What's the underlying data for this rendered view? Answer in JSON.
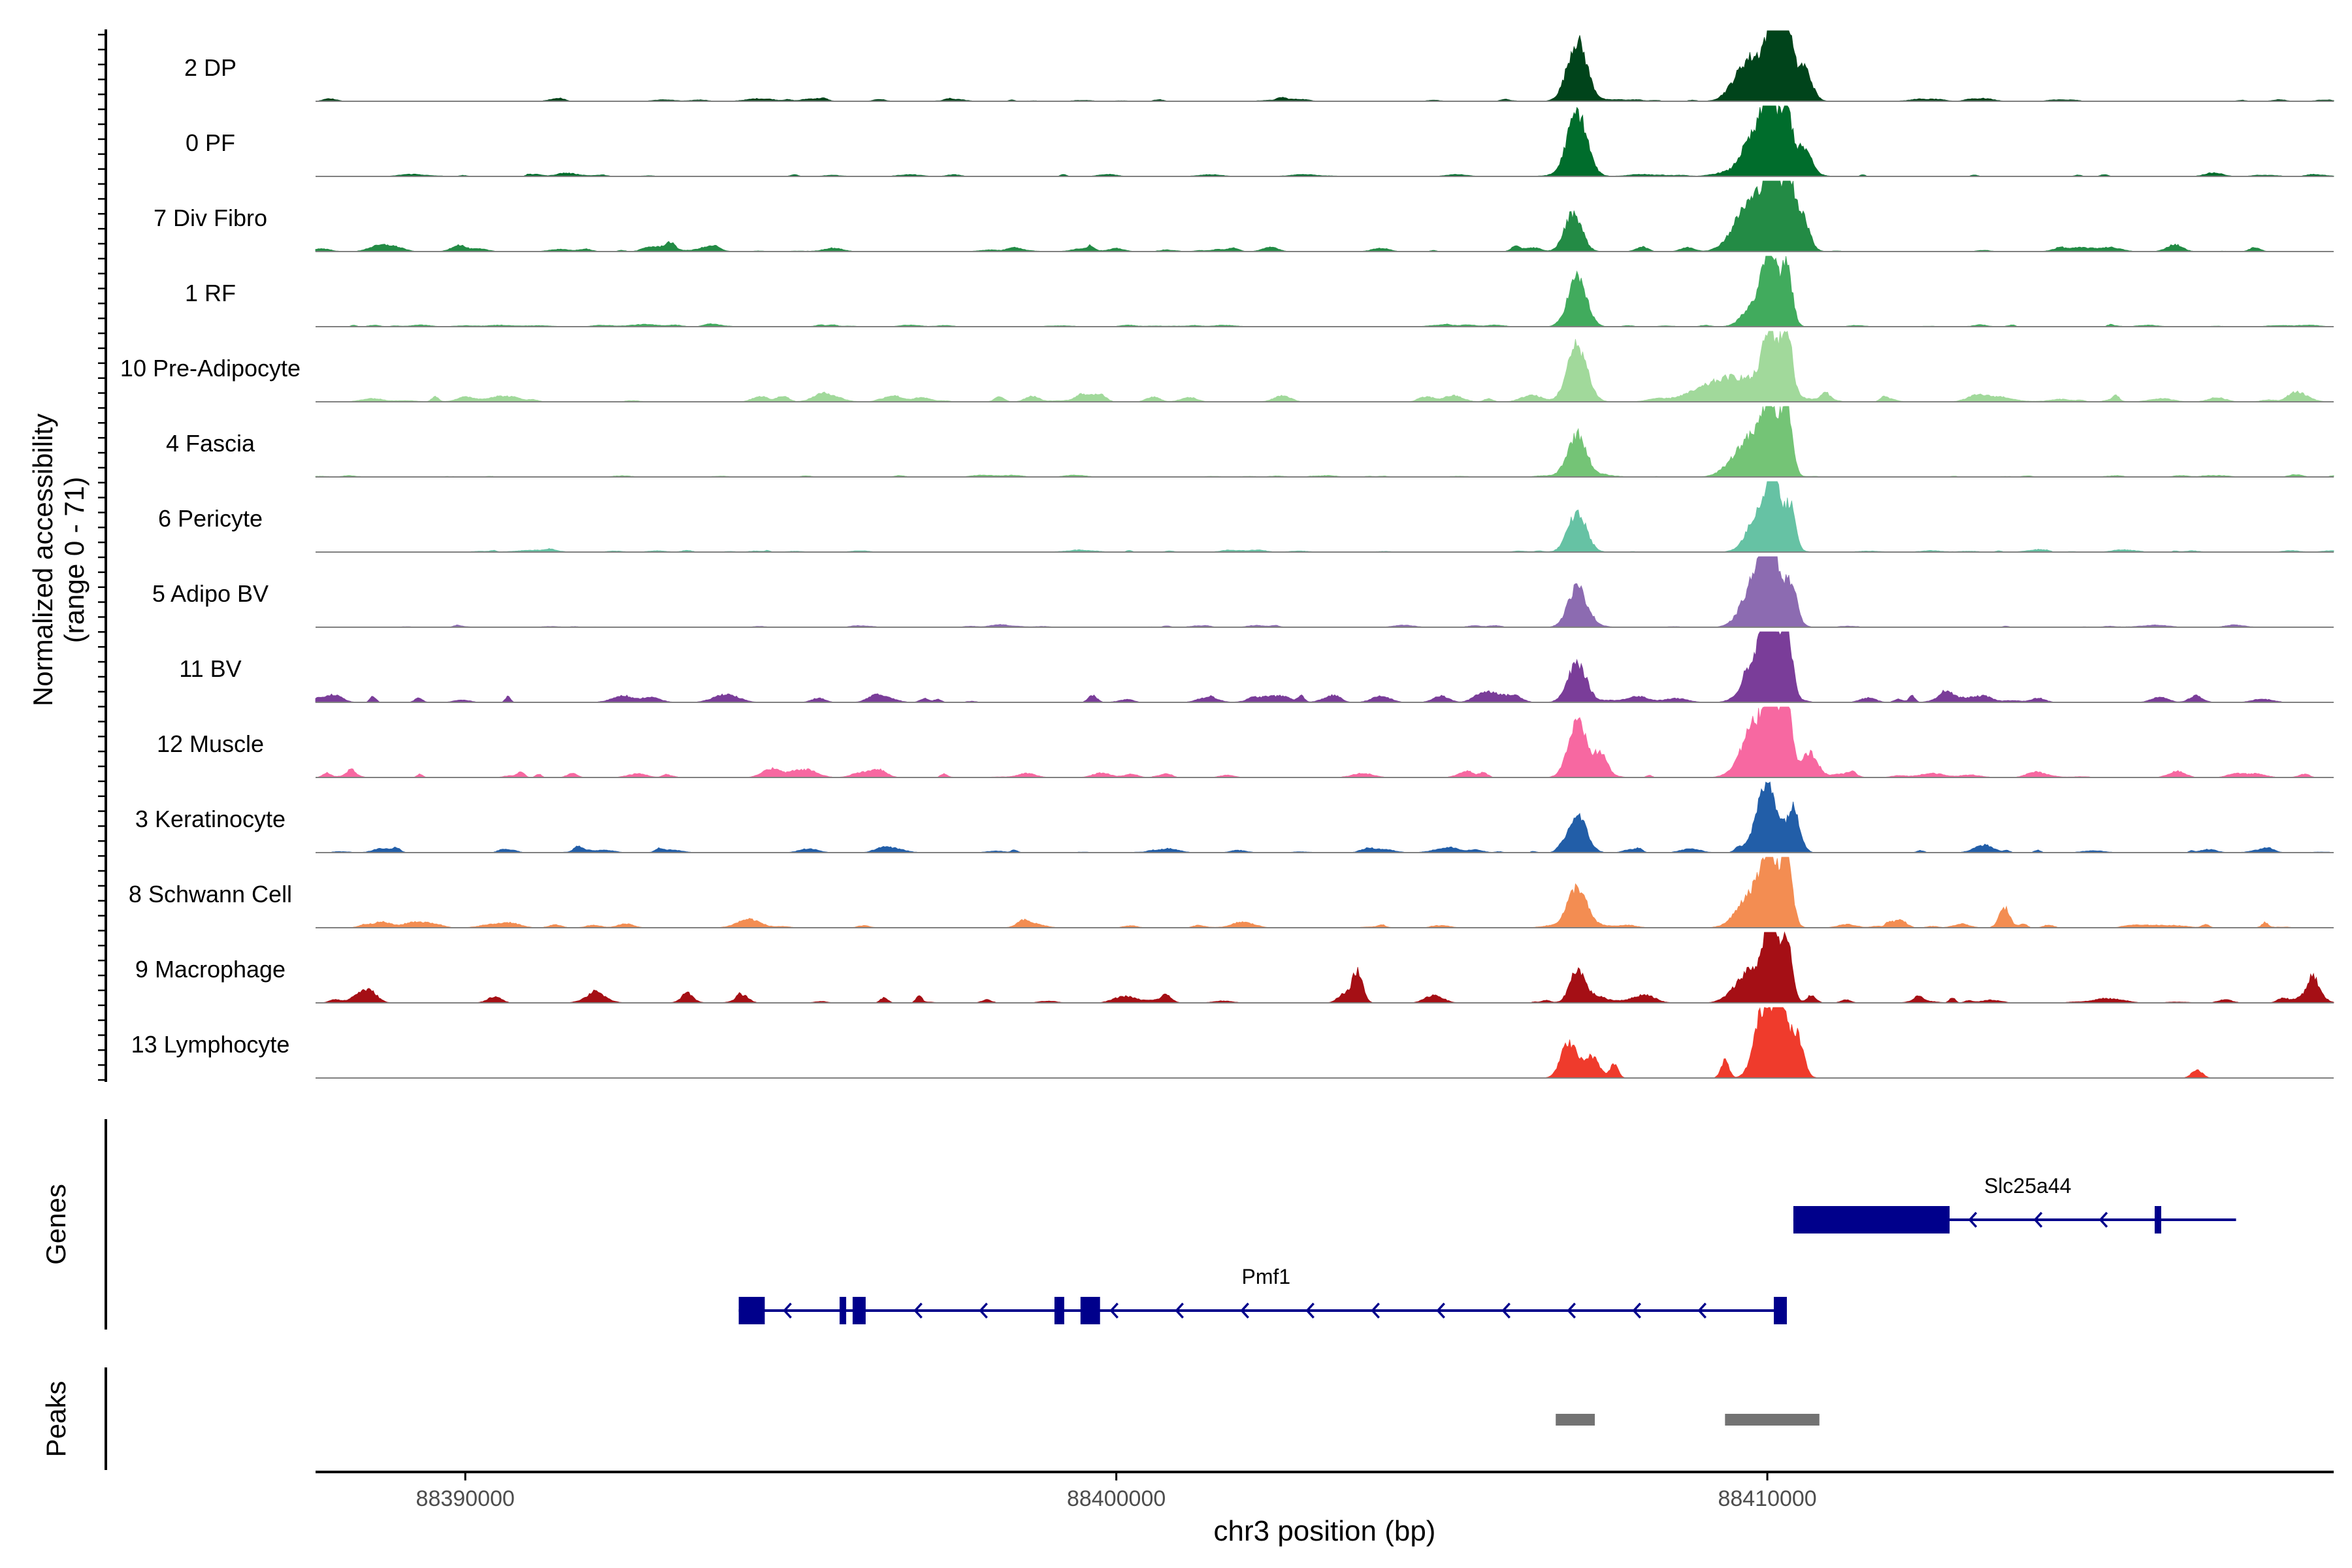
{
  "chart_data": {
    "type": "area",
    "title": "",
    "ylabel_line1": "Normalized accessibility",
    "ylabel_line2": "(range 0 - 71)",
    "xlabel": "chr3 position (bp)",
    "xlim": [
      88387700,
      88418700
    ],
    "x_ticks": [
      {
        "value": 88390000,
        "label": "88390000"
      },
      {
        "value": 88400000,
        "label": "88400000"
      },
      {
        "value": 88410000,
        "label": "88410000"
      }
    ],
    "ylim": [
      0,
      71
    ],
    "tracks": [
      {
        "name": "2 DP",
        "color": "#00441b",
        "noise": 0.6,
        "peaks": [
          [
            88407080,
            150,
            0.85
          ],
          [
            88409750,
            220,
            0.6
          ],
          [
            88410100,
            120,
            1.0
          ],
          [
            88410300,
            80,
            0.95
          ],
          [
            88410550,
            120,
            0.5
          ]
        ]
      },
      {
        "name": "0 PF",
        "color": "#006d2c",
        "noise": 0.6,
        "peaks": [
          [
            88407080,
            150,
            0.9
          ],
          [
            88409800,
            200,
            0.55
          ],
          [
            88410050,
            110,
            1.0
          ],
          [
            88410300,
            80,
            0.9
          ],
          [
            88410550,
            120,
            0.4
          ]
        ]
      },
      {
        "name": "7 Div Fibro",
        "color": "#238b45",
        "noise": 1.2,
        "peaks": [
          [
            88407020,
            130,
            0.55
          ],
          [
            88409750,
            240,
            0.7
          ],
          [
            88410050,
            110,
            1.0
          ],
          [
            88410300,
            80,
            1.0
          ],
          [
            88410500,
            120,
            0.6
          ]
        ]
      },
      {
        "name": "1 RF",
        "color": "#41ab5d",
        "noise": 0.5,
        "peaks": [
          [
            88407080,
            140,
            0.7
          ],
          [
            88409850,
            180,
            0.4
          ],
          [
            88410050,
            100,
            1.0
          ],
          [
            88410300,
            80,
            0.85
          ]
        ]
      },
      {
        "name": "10 Pre-Adipocyte",
        "color": "#a1d99b",
        "noise": 1.8,
        "peaks": [
          [
            88407080,
            150,
            0.8
          ],
          [
            88409500,
            500,
            0.35
          ],
          [
            88410050,
            120,
            0.85
          ],
          [
            88410300,
            80,
            0.8
          ]
        ]
      },
      {
        "name": "4 Fascia",
        "color": "#74c476",
        "noise": 0.4,
        "peaks": [
          [
            88407080,
            140,
            0.6
          ],
          [
            88409750,
            250,
            0.55
          ],
          [
            88410050,
            120,
            0.85
          ],
          [
            88410300,
            80,
            1.0
          ]
        ]
      },
      {
        "name": "6 Pericyte",
        "color": "#66c2a4",
        "noise": 0.5,
        "peaks": [
          [
            88407080,
            140,
            0.55
          ],
          [
            88409950,
            200,
            0.7
          ],
          [
            88410100,
            80,
            0.95
          ],
          [
            88410350,
            80,
            0.6
          ]
        ]
      },
      {
        "name": "5 Adipo BV",
        "color": "#8c6bb1",
        "noise": 0.5,
        "peaks": [
          [
            88407080,
            140,
            0.55
          ],
          [
            88409850,
            200,
            0.7
          ],
          [
            88410050,
            120,
            1.0
          ],
          [
            88410350,
            100,
            0.6
          ]
        ]
      },
      {
        "name": "11 BV",
        "color": "#7a3d99",
        "noise": 2.0,
        "peaks": [
          [
            88407080,
            140,
            0.55
          ],
          [
            88409900,
            200,
            0.65
          ],
          [
            88410050,
            110,
            0.95
          ],
          [
            88410300,
            80,
            1.0
          ]
        ]
      },
      {
        "name": "12 Muscle",
        "color": "#f768a1",
        "noise": 1.5,
        "peaks": [
          [
            88407080,
            140,
            0.75
          ],
          [
            88407450,
            90,
            0.25
          ],
          [
            88409850,
            220,
            0.8
          ],
          [
            88410080,
            100,
            0.85
          ],
          [
            88410300,
            80,
            1.0
          ],
          [
            88410650,
            120,
            0.35
          ]
        ]
      },
      {
        "name": "3 Keratinocyte",
        "color": "#225ea8",
        "noise": 1.2,
        "peaks": [
          [
            88407080,
            140,
            0.5
          ],
          [
            88410000,
            150,
            1.0
          ],
          [
            88410400,
            100,
            0.6
          ]
        ]
      },
      {
        "name": "8 Schwann Cell",
        "color": "#f38d52",
        "noise": 1.4,
        "peaks": [
          [
            88407080,
            140,
            0.5
          ],
          [
            88409800,
            220,
            0.55
          ],
          [
            88410050,
            110,
            0.8
          ],
          [
            88410300,
            80,
            1.0
          ],
          [
            88413650,
            80,
            0.25
          ]
        ]
      },
      {
        "name": "9 Macrophage",
        "color": "#a50f15",
        "noise": 2.4,
        "peaks": [
          [
            88403700,
            80,
            0.45
          ],
          [
            88407080,
            110,
            0.45
          ],
          [
            88409850,
            220,
            0.45
          ],
          [
            88410050,
            90,
            1.0
          ],
          [
            88410300,
            80,
            0.85
          ]
        ]
      },
      {
        "name": "13 Lymphocyte",
        "color": "#ef3b2c",
        "noise": 0.0,
        "peaks": [
          [
            88406950,
            120,
            0.5
          ],
          [
            88407300,
            120,
            0.3
          ],
          [
            88407650,
            60,
            0.2
          ],
          [
            88409350,
            60,
            0.25
          ],
          [
            88409950,
            140,
            1.0
          ],
          [
            88410200,
            100,
            0.95
          ],
          [
            88410450,
            100,
            0.6
          ],
          [
            88416600,
            80,
            0.12
          ]
        ]
      }
    ],
    "genes_label": "Genes",
    "genes": [
      {
        "name": "Slc25a44",
        "start": 88410400,
        "end": 88417200,
        "strand": "-",
        "color": "#00008b",
        "exons": [
          [
            88410400,
            88412800
          ],
          [
            88415950,
            88416050
          ]
        ]
      },
      {
        "name": "Pmf1",
        "start": 88394200,
        "end": 88410300,
        "strand": "-",
        "color": "#00008b",
        "exons": [
          [
            88394200,
            88394600
          ],
          [
            88395750,
            88395850
          ],
          [
            88395950,
            88396150
          ],
          [
            88399050,
            88399200
          ],
          [
            88399450,
            88399750
          ],
          [
            88410100,
            88410300
          ]
        ]
      }
    ],
    "peaks_label": "Peaks",
    "peak_regions": [
      [
        88406750,
        88407350
      ],
      [
        88409350,
        88410800
      ]
    ],
    "peak_color": "#737373"
  }
}
